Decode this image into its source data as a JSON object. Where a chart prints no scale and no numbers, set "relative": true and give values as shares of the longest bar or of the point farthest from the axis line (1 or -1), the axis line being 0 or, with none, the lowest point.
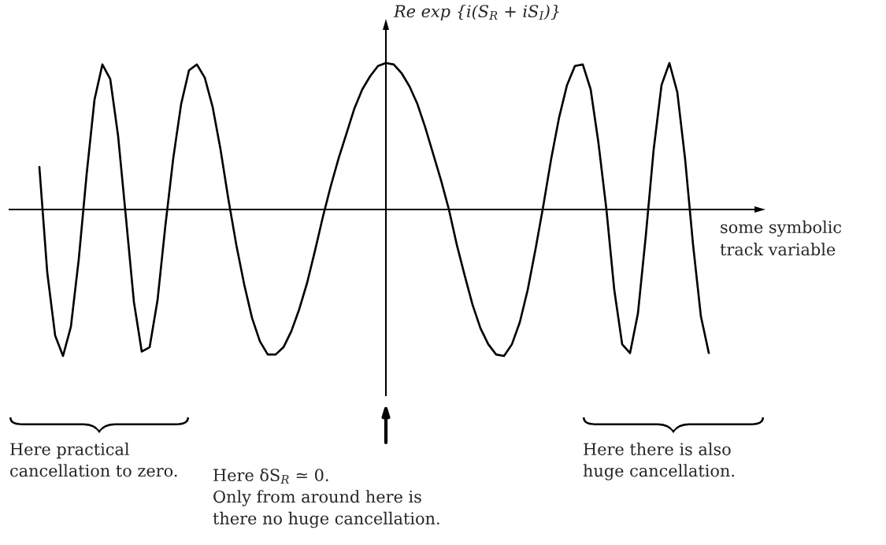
{
  "chart_data": {
    "type": "line",
    "relative": true,
    "ylabel": "Re exp {i(S$_{R}$ + iS$_{I}$)}",
    "xlabel": "some symbolic\ntrack variable",
    "annotations": [
      "Here practical\ncancellation to zero.",
      "Here δS$_{R}$ ≃ 0.\nOnly from around here is\nthere no huge cancellation.",
      "Here there is also\nhuge cancellation."
    ],
    "categories": [
      null,
      null,
      null,
      null,
      null,
      null,
      null,
      null,
      null,
      null,
      null,
      null,
      null,
      null,
      null,
      null,
      null,
      null,
      null,
      null,
      null,
      null,
      null,
      null,
      null,
      null,
      null,
      null,
      null,
      null,
      null,
      null,
      null,
      null,
      null,
      null,
      null,
      null,
      null,
      null,
      null,
      null,
      null,
      null,
      null,
      null,
      null,
      null,
      null,
      null,
      null,
      null,
      null,
      null,
      null,
      null,
      null,
      null,
      null,
      null,
      null,
      null,
      null,
      null,
      null,
      null,
      null,
      null,
      null,
      null,
      null,
      null,
      null,
      null,
      null,
      null,
      null,
      null,
      null,
      null,
      null,
      null,
      null,
      null,
      null,
      null
    ],
    "color": "#000000",
    "values": [
      0.29,
      -0.43,
      -0.86,
      -1.0,
      -0.8,
      -0.34,
      0.24,
      0.75,
      0.99,
      0.89,
      0.5,
      -0.06,
      -0.63,
      -0.97,
      -0.94,
      -0.62,
      -0.11,
      0.35,
      0.72,
      0.95,
      0.99,
      0.9,
      0.7,
      0.41,
      0.07,
      -0.24,
      -0.51,
      -0.74,
      -0.9,
      -0.99,
      -0.99,
      -0.94,
      -0.83,
      -0.68,
      -0.5,
      -0.28,
      -0.05,
      0.16,
      0.35,
      0.52,
      0.69,
      0.82,
      0.91,
      0.98,
      1.0,
      0.99,
      0.93,
      0.84,
      0.72,
      0.56,
      0.38,
      0.2,
      0.0,
      -0.24,
      -0.45,
      -0.65,
      -0.81,
      -0.92,
      -0.99,
      -1.0,
      -0.92,
      -0.77,
      -0.55,
      -0.27,
      0.03,
      0.35,
      0.63,
      0.85,
      0.98,
      0.99,
      0.82,
      0.45,
      0.0,
      -0.55,
      -0.92,
      -0.98,
      -0.71,
      -0.18,
      0.41,
      0.85,
      1.0,
      0.8,
      0.34,
      -0.24,
      -0.73,
      -0.98
    ]
  }
}
